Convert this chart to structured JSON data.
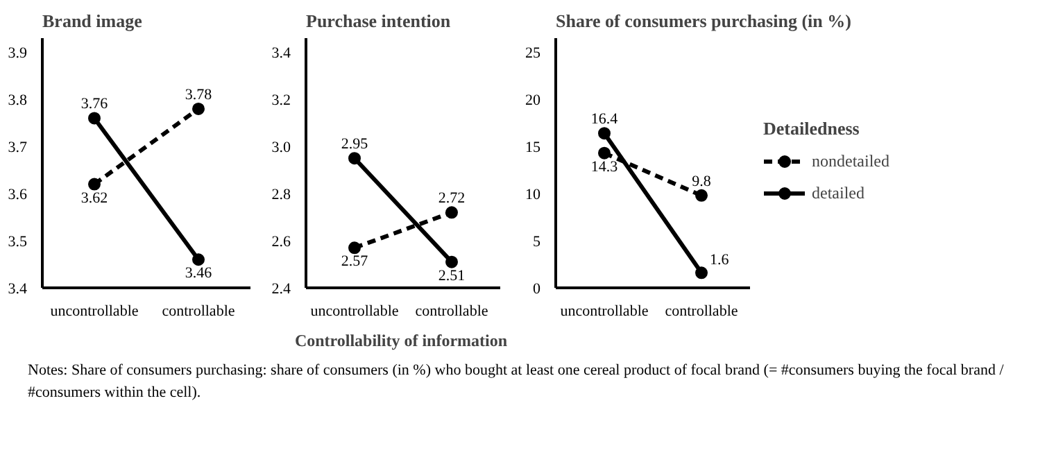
{
  "chart_data": [
    {
      "type": "line",
      "title": "Brand image",
      "categories": [
        "uncontrollable",
        "controllable"
      ],
      "ylim": [
        3.4,
        3.93
      ],
      "yticks": [
        3.4,
        3.5,
        3.6,
        3.7,
        3.8,
        3.9
      ],
      "grid": false,
      "legend": false,
      "marker": "circle",
      "data_labels": true,
      "series": [
        {
          "color": "#000000",
          "line_style": "dashed",
          "values": [
            3.62,
            3.78
          ]
        },
        {
          "color": "#000000",
          "line_style": "solid",
          "values": [
            3.76,
            3.46
          ]
        }
      ]
    },
    {
      "type": "line",
      "title": "Purchase intention",
      "xlabel": "Controllability  of information",
      "categories": [
        "uncontrollable",
        "controllable"
      ],
      "ylim": [
        2.4,
        3.46
      ],
      "yticks": [
        2.4,
        2.6,
        2.8,
        {
          "value": 3.0,
          "label": "3.0"
        },
        3.2,
        3.4
      ],
      "grid": false,
      "legend": false,
      "marker": "circle",
      "data_labels": true,
      "series": [
        {
          "color": "#000000",
          "line_style": "dashed",
          "values": [
            2.57,
            2.72
          ]
        },
        {
          "color": "#000000",
          "line_style": "solid",
          "values": [
            2.95,
            2.51
          ]
        }
      ]
    },
    {
      "type": "line",
      "title": "Share of consumers purchasing  (in %)",
      "categories": [
        "uncontrollable",
        "controllable"
      ],
      "ylim": [
        0,
        26.5
      ],
      "yticks": [
        0,
        5,
        10,
        15,
        20,
        25
      ],
      "grid": false,
      "legend": "right",
      "legend_title": "Detailedness",
      "marker": "circle",
      "data_labels": true,
      "annotations": [
        "Notes:  Share of consumers purchasing: share of consumers (in %) who bought at least one cereal product of focal brand (= #consumers buying the focal brand / #consumers within the cell)."
      ],
      "series": [
        {
          "name": "nondetailed",
          "color": "#000000",
          "line_style": "dashed",
          "values": [
            14.3,
            9.8
          ]
        },
        {
          "name": "detailed",
          "color": "#000000",
          "line_style": "solid",
          "values": [
            16.4,
            1.6
          ]
        }
      ]
    }
  ]
}
